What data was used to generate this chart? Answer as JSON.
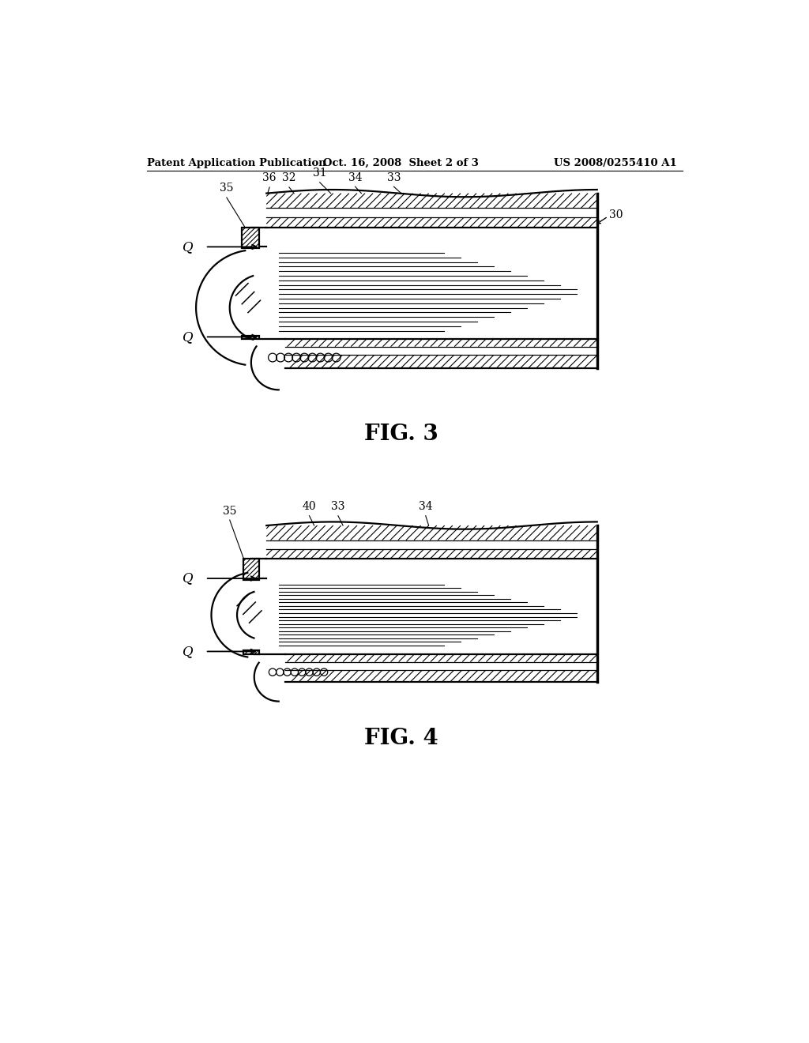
{
  "background_color": "#ffffff",
  "header_left": "Patent Application Publication",
  "header_mid": "Oct. 16, 2008  Sheet 2 of 3",
  "header_right": "US 2008/0255410 A1",
  "fig3_label": "FIG. 3",
  "fig4_label": "FIG. 4"
}
